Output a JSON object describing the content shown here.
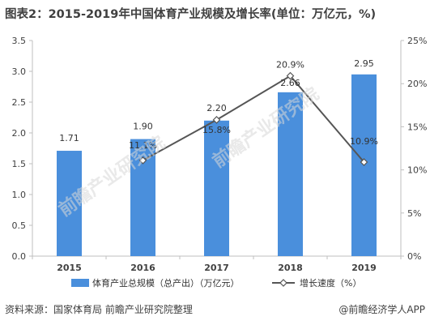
{
  "title": "图表2：2015-2019年中国体育产业规模及增长率(单位：万亿元，%)",
  "source": "资料来源：国家体育局 前瞻产业研究院整理",
  "brand": "@前瞻经济学人APP",
  "watermark": "前瞻产业研究院",
  "chart_data": {
    "type": "bar",
    "categories": [
      "2015",
      "2016",
      "2017",
      "2018",
      "2019"
    ],
    "series": [
      {
        "name": "体育产业总规模（总产出）（万亿元）",
        "kind": "bar",
        "axis": "left",
        "values": [
          1.71,
          1.9,
          2.2,
          2.66,
          2.95
        ],
        "labels": [
          "1.71",
          "1.90",
          "2.20",
          "2.66",
          "2.95"
        ],
        "color": "#4a8fdc"
      },
      {
        "name": "增长速度（%）",
        "kind": "line",
        "axis": "right",
        "values": [
          null,
          11.1,
          15.8,
          20.9,
          10.9
        ],
        "labels": [
          "",
          "11.1%",
          "15.8%",
          "20.9%",
          "10.9%"
        ],
        "color": "#555555"
      }
    ],
    "y_left": {
      "range": [
        0,
        3.5
      ],
      "ticks": [
        "0.0",
        "0.5",
        "1.0",
        "1.5",
        "2.0",
        "2.5",
        "3.0",
        "3.5"
      ]
    },
    "y_right": {
      "range": [
        0,
        25
      ],
      "ticks": [
        "0%",
        "5%",
        "10%",
        "15%",
        "20%",
        "25%"
      ]
    },
    "grid": false,
    "legend": "bottom"
  }
}
